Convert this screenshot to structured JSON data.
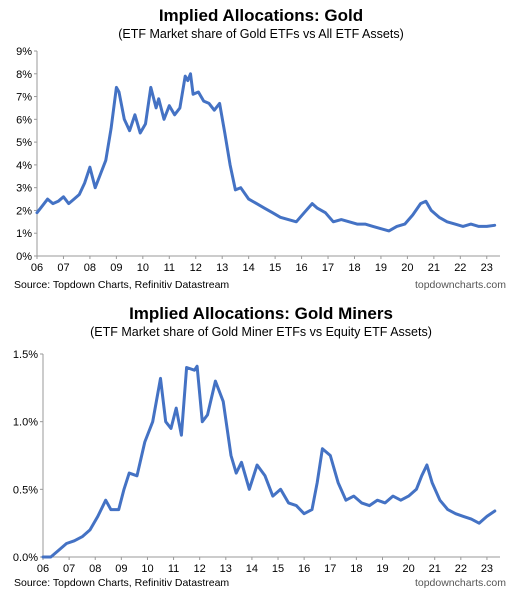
{
  "chart_data": [
    {
      "type": "line",
      "title": "Implied Allocations: Gold",
      "subtitle": "(ETF Market share of Gold ETFs vs All ETF Assets)",
      "source": "Source: Topdown Charts, Refinitiv Datastream",
      "watermark": "topdowncharts.com",
      "x_ticks": [
        "06",
        "07",
        "08",
        "09",
        "10",
        "11",
        "12",
        "13",
        "14",
        "15",
        "16",
        "17",
        "18",
        "19",
        "20",
        "21",
        "22",
        "23"
      ],
      "y_ticks": [
        "0%",
        "1%",
        "2%",
        "3%",
        "4%",
        "5%",
        "6%",
        "7%",
        "8%",
        "9%"
      ],
      "xlim": [
        2006,
        2023.5
      ],
      "ylim": [
        0,
        9
      ],
      "grid": false,
      "color": "#4472C4",
      "series": [
        {
          "x": [
            2006.0,
            2006.2,
            2006.4,
            2006.6,
            2006.8,
            2007.0,
            2007.2,
            2007.4,
            2007.6,
            2007.8,
            2008.0,
            2008.2,
            2008.4,
            2008.6,
            2008.8,
            2009.0,
            2009.1,
            2009.3,
            2009.5,
            2009.7,
            2009.9,
            2010.1,
            2010.3,
            2010.5,
            2010.6,
            2010.8,
            2011.0,
            2011.2,
            2011.4,
            2011.6,
            2011.7,
            2011.8,
            2011.9,
            2012.1,
            2012.3,
            2012.5,
            2012.7,
            2012.9,
            2013.1,
            2013.3,
            2013.5,
            2013.7,
            2014.0,
            2014.3,
            2014.6,
            2014.9,
            2015.2,
            2015.5,
            2015.8,
            2016.1,
            2016.4,
            2016.6,
            2016.9,
            2017.2,
            2017.5,
            2017.8,
            2018.1,
            2018.4,
            2018.7,
            2019.0,
            2019.3,
            2019.6,
            2019.9,
            2020.2,
            2020.5,
            2020.7,
            2020.9,
            2021.2,
            2021.5,
            2021.8,
            2022.1,
            2022.4,
            2022.7,
            2023.0,
            2023.3
          ],
          "y": [
            1.9,
            2.2,
            2.5,
            2.3,
            2.4,
            2.6,
            2.3,
            2.5,
            2.7,
            3.2,
            3.9,
            3.0,
            3.6,
            4.2,
            5.6,
            7.4,
            7.2,
            6.0,
            5.5,
            6.2,
            5.4,
            5.8,
            7.4,
            6.5,
            6.9,
            6.0,
            6.6,
            6.2,
            6.5,
            7.9,
            7.7,
            8.0,
            7.1,
            7.2,
            6.8,
            6.7,
            6.4,
            6.7,
            5.4,
            4.0,
            2.9,
            3.0,
            2.5,
            2.3,
            2.1,
            1.9,
            1.7,
            1.6,
            1.5,
            1.9,
            2.3,
            2.1,
            1.9,
            1.5,
            1.6,
            1.5,
            1.4,
            1.4,
            1.3,
            1.2,
            1.1,
            1.3,
            1.4,
            1.8,
            2.3,
            2.4,
            2.0,
            1.7,
            1.5,
            1.4,
            1.3,
            1.4,
            1.3,
            1.3,
            1.35
          ]
        }
      ]
    },
    {
      "type": "line",
      "title": "Implied Allocations: Gold Miners",
      "subtitle": "(ETF Market share of Gold Miner ETFs vs Equity ETF Assets)",
      "source": "Source: Topdown Charts, Refinitiv Datastream",
      "watermark": "topdowncharts.com",
      "x_ticks": [
        "06",
        "07",
        "08",
        "09",
        "10",
        "11",
        "12",
        "13",
        "14",
        "15",
        "16",
        "17",
        "18",
        "19",
        "20",
        "21",
        "22",
        "23"
      ],
      "y_ticks": [
        "0.0%",
        "0.5%",
        "1.0%",
        "1.5%"
      ],
      "xlim": [
        2006,
        2023.5
      ],
      "ylim": [
        0,
        1.5
      ],
      "grid": false,
      "color": "#4472C4",
      "series": [
        {
          "x": [
            2006.0,
            2006.3,
            2006.6,
            2006.9,
            2007.2,
            2007.5,
            2007.8,
            2008.1,
            2008.4,
            2008.6,
            2008.9,
            2009.1,
            2009.3,
            2009.6,
            2009.9,
            2010.2,
            2010.5,
            2010.7,
            2010.9,
            2011.1,
            2011.3,
            2011.5,
            2011.8,
            2011.9,
            2012.1,
            2012.3,
            2012.6,
            2012.9,
            2013.2,
            2013.4,
            2013.6,
            2013.9,
            2014.2,
            2014.5,
            2014.8,
            2015.1,
            2015.4,
            2015.7,
            2016.0,
            2016.3,
            2016.5,
            2016.7,
            2017.0,
            2017.3,
            2017.6,
            2017.9,
            2018.2,
            2018.5,
            2018.8,
            2019.1,
            2019.4,
            2019.7,
            2020.0,
            2020.3,
            2020.5,
            2020.7,
            2020.9,
            2021.2,
            2021.5,
            2021.8,
            2022.1,
            2022.4,
            2022.7,
            2023.0,
            2023.3
          ],
          "y": [
            0.0,
            0.0,
            0.05,
            0.1,
            0.12,
            0.15,
            0.2,
            0.3,
            0.42,
            0.35,
            0.35,
            0.5,
            0.62,
            0.6,
            0.85,
            1.0,
            1.32,
            1.0,
            0.95,
            1.1,
            0.9,
            1.4,
            1.38,
            1.41,
            1.0,
            1.05,
            1.3,
            1.15,
            0.75,
            0.62,
            0.7,
            0.5,
            0.68,
            0.6,
            0.45,
            0.5,
            0.4,
            0.38,
            0.32,
            0.35,
            0.55,
            0.8,
            0.75,
            0.55,
            0.42,
            0.45,
            0.4,
            0.38,
            0.42,
            0.4,
            0.45,
            0.42,
            0.45,
            0.5,
            0.6,
            0.68,
            0.55,
            0.42,
            0.35,
            0.32,
            0.3,
            0.28,
            0.25,
            0.3,
            0.34
          ]
        }
      ]
    }
  ]
}
